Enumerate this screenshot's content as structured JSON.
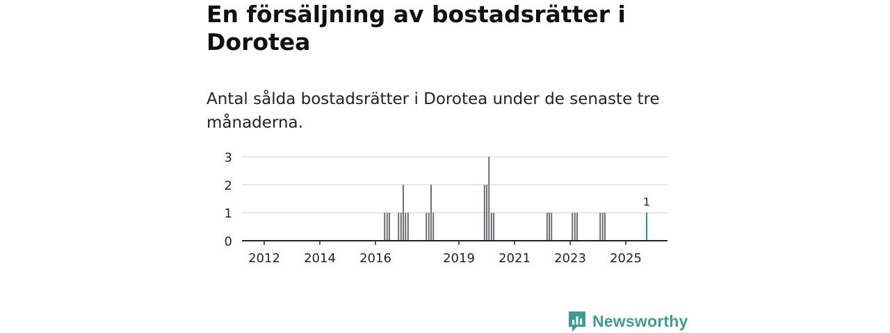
{
  "title": "En försäljning av bostadsrätter i Dorotea",
  "subtitle": "Antal sålda bostadsrätter i Dorotea under de senaste tre månaderna.",
  "brand": {
    "name": "Newsworthy",
    "color": "#3c9e8f",
    "icon": "bar-chart-speech-icon"
  },
  "colors": {
    "bar": "#6e6e73",
    "highlight": "#1a9e8a",
    "grid": "#dddddd",
    "axis": "#222222"
  },
  "chart_data": {
    "type": "bar",
    "title": "Antal sålda bostadsrätter i Dorotea",
    "xlabel": "",
    "ylabel": "",
    "xlim": [
      2011.2,
      2026.5
    ],
    "ylim": [
      0,
      3
    ],
    "yticks": [
      0,
      1,
      2,
      3
    ],
    "xticks": [
      {
        "value": 2012,
        "label": "2012"
      },
      {
        "value": 2014,
        "label": "2014"
      },
      {
        "value": 2016,
        "label": "2016"
      },
      {
        "value": 2019,
        "label": "2019"
      },
      {
        "value": 2021,
        "label": "2021"
      },
      {
        "value": 2023,
        "label": "2023"
      },
      {
        "value": 2025,
        "label": "2025"
      }
    ],
    "bar_width_years": 0.08,
    "x": [
      2016.33,
      2016.42,
      2016.5,
      2016.83,
      2016.92,
      2017.0,
      2017.08,
      2017.17,
      2017.83,
      2017.92,
      2018.0,
      2018.08,
      2019.92,
      2020.0,
      2020.08,
      2020.17,
      2020.25,
      2022.17,
      2022.25,
      2022.33,
      2023.08,
      2023.17,
      2023.25,
      2024.08,
      2024.17,
      2024.25,
      2025.75
    ],
    "values": [
      1,
      1,
      1,
      1,
      1,
      2,
      1,
      1,
      1,
      1,
      2,
      1,
      2,
      2,
      3,
      1,
      1,
      1,
      1,
      1,
      1,
      1,
      1,
      1,
      1,
      1,
      1
    ],
    "highlight": {
      "x": 2025.75,
      "value": 1,
      "label": "1"
    }
  }
}
